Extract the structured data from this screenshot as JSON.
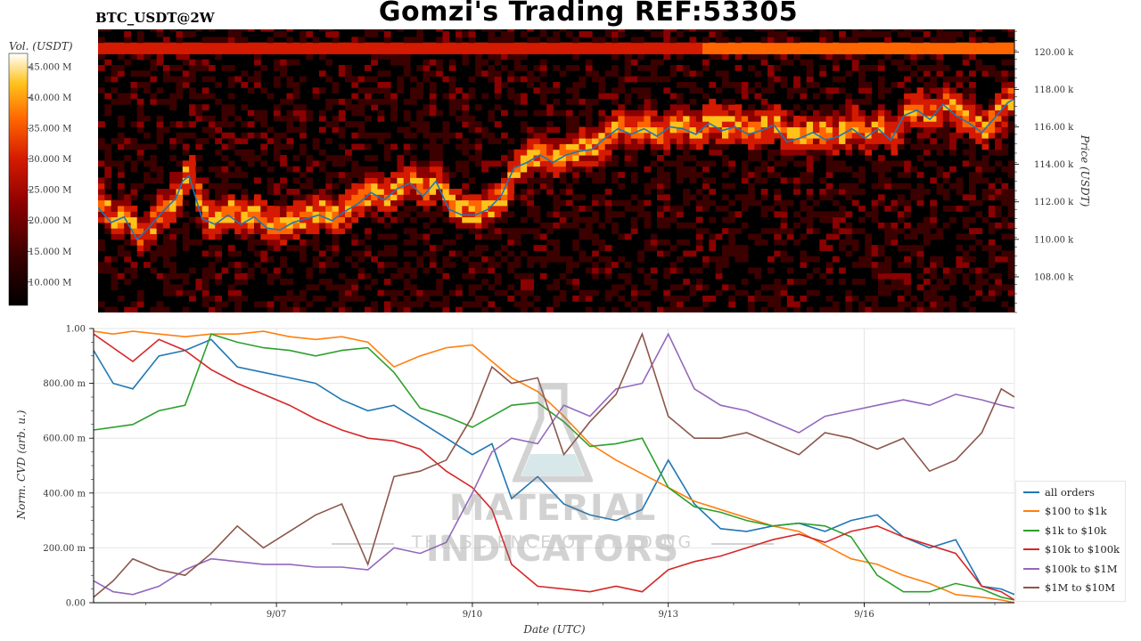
{
  "header": {
    "title": "Gomzi's Trading REF:53305",
    "ticker": "BTC_USDT@2W"
  },
  "watermark": {
    "name": "MATERIAL INDICATORS",
    "slogan": "THE SCIENCE OF TRADING"
  },
  "colors": {
    "heatmap_background": "#000000",
    "price_line": "#1f77b4",
    "colormap": [
      "#000000",
      "#3b0000",
      "#8b0000",
      "#d41a00",
      "#ff6600",
      "#ffc21a",
      "#ffffff"
    ]
  },
  "chart_data": [
    {
      "type": "heatmap",
      "description_of_axes": "order book liquidity heatmap with BTC price line",
      "colorbar": {
        "label": "Vol. (USDT)",
        "ticks": [
          {
            "value": 10,
            "label": "10.000 M"
          },
          {
            "value": 15,
            "label": "15.000 M"
          },
          {
            "value": 20,
            "label": "20.000 M"
          },
          {
            "value": 25,
            "label": "25.000 M"
          },
          {
            "value": 30,
            "label": "30.000 M"
          },
          {
            "value": 35,
            "label": "35.000 M"
          },
          {
            "value": 40,
            "label": "40.000 M"
          },
          {
            "value": 45,
            "label": "45.000 M"
          }
        ],
        "range": [
          6.2,
          47.2
        ]
      },
      "y_axis": {
        "label": "Price (USDT)",
        "side": "right",
        "range": [
          106.1,
          121.2
        ],
        "ticks": [
          {
            "value": 108,
            "label": "108.00 k"
          },
          {
            "value": 110,
            "label": "110.00 k"
          },
          {
            "value": 112,
            "label": "112.00 k"
          },
          {
            "value": 114,
            "label": "114.00 k"
          },
          {
            "value": 116,
            "label": "116.00 k"
          },
          {
            "value": 118,
            "label": "118.00 k"
          },
          {
            "value": 120,
            "label": "120.00 k"
          }
        ]
      },
      "x_range": [
        4.2,
        18.3
      ],
      "price_series": {
        "x": [
          4.2,
          4.4,
          4.6,
          4.8,
          5.0,
          5.2,
          5.4,
          5.5,
          5.6,
          5.8,
          6.0,
          6.2,
          6.4,
          6.6,
          6.8,
          7.0,
          7.2,
          7.4,
          7.6,
          7.8,
          8.0,
          8.2,
          8.4,
          8.6,
          8.8,
          9.0,
          9.2,
          9.4,
          9.6,
          9.8,
          10.0,
          10.2,
          10.4,
          10.6,
          10.8,
          11.0,
          11.2,
          11.4,
          11.6,
          11.8,
          12.0,
          12.2,
          12.4,
          12.6,
          12.8,
          13.0,
          13.2,
          13.4,
          13.6,
          13.8,
          14.0,
          14.2,
          14.4,
          14.6,
          14.8,
          15.0,
          15.2,
          15.4,
          15.6,
          15.8,
          16.0,
          16.2,
          16.4,
          16.6,
          16.8,
          17.0,
          17.2,
          17.4,
          17.6,
          17.8,
          18.0,
          18.2,
          18.3
        ],
        "y": [
          111.7,
          110.9,
          111.2,
          110.0,
          110.7,
          111.5,
          112.2,
          113.1,
          113.4,
          111.1,
          110.8,
          111.3,
          110.8,
          111.2,
          110.6,
          110.5,
          110.9,
          111.1,
          111.3,
          111.0,
          111.5,
          111.9,
          112.5,
          112.1,
          112.7,
          113.0,
          112.3,
          113.1,
          111.6,
          111.3,
          111.3,
          111.6,
          112.3,
          113.8,
          114.1,
          114.5,
          114.1,
          114.5,
          114.7,
          114.8,
          115.4,
          115.9,
          115.6,
          115.9,
          115.5,
          116.0,
          115.9,
          115.6,
          116.2,
          115.8,
          116.0,
          115.6,
          115.8,
          116.1,
          115.2,
          115.4,
          115.7,
          115.3,
          115.5,
          115.9,
          115.4,
          115.9,
          115.3,
          116.6,
          116.9,
          116.4,
          117.2,
          116.6,
          116.2,
          115.7,
          116.5,
          117.3,
          117.5
        ]
      }
    },
    {
      "type": "line",
      "x_axis": {
        "label": "Date (UTC)",
        "range": [
          4.2,
          18.3
        ],
        "ticks": [
          {
            "value": 7,
            "label": "9/07"
          },
          {
            "value": 10,
            "label": "9/10"
          },
          {
            "value": 13,
            "label": "9/13"
          },
          {
            "value": 16,
            "label": "9/16"
          }
        ]
      },
      "y_axis": {
        "label": "Norm. CVD (arb. u.)",
        "range": [
          0,
          1
        ],
        "ticks": [
          {
            "value": 0,
            "label": "0.00"
          },
          {
            "value": 0.2,
            "label": "200.00 m"
          },
          {
            "value": 0.4,
            "label": "400.00 m"
          },
          {
            "value": 0.6,
            "label": "600.00 m"
          },
          {
            "value": 0.8,
            "label": "800.00 m"
          },
          {
            "value": 1.0,
            "label": "1.00"
          }
        ]
      },
      "grid": true,
      "legend_position": "bottom-right",
      "x": [
        4.2,
        4.5,
        4.8,
        5.2,
        5.6,
        6.0,
        6.4,
        6.8,
        7.2,
        7.6,
        8.0,
        8.4,
        8.8,
        9.2,
        9.6,
        10.0,
        10.3,
        10.6,
        11.0,
        11.4,
        11.8,
        12.2,
        12.6,
        13.0,
        13.4,
        13.8,
        14.2,
        14.6,
        15.0,
        15.4,
        15.8,
        16.2,
        16.6,
        17.0,
        17.4,
        17.8,
        18.1,
        18.3
      ],
      "series": [
        {
          "name": "all orders",
          "color": "#1f77b4",
          "values": [
            0.92,
            0.8,
            0.78,
            0.9,
            0.92,
            0.96,
            0.86,
            0.84,
            0.82,
            0.8,
            0.74,
            0.7,
            0.72,
            0.66,
            0.6,
            0.54,
            0.58,
            0.38,
            0.46,
            0.36,
            0.32,
            0.3,
            0.34,
            0.52,
            0.36,
            0.27,
            0.26,
            0.28,
            0.29,
            0.26,
            0.3,
            0.32,
            0.24,
            0.2,
            0.23,
            0.06,
            0.05,
            0.03
          ]
        },
        {
          "name": "$100 to $1k",
          "color": "#ff7f0e",
          "values": [
            0.99,
            0.98,
            0.99,
            0.98,
            0.97,
            0.98,
            0.98,
            0.99,
            0.97,
            0.96,
            0.97,
            0.95,
            0.86,
            0.9,
            0.93,
            0.94,
            0.88,
            0.82,
            0.77,
            0.68,
            0.58,
            0.52,
            0.47,
            0.42,
            0.37,
            0.34,
            0.31,
            0.28,
            0.26,
            0.21,
            0.16,
            0.14,
            0.1,
            0.07,
            0.03,
            0.02,
            0.01,
            0.0
          ]
        },
        {
          "name": "$1k to $10k",
          "color": "#2ca02c",
          "values": [
            0.63,
            0.64,
            0.65,
            0.7,
            0.72,
            0.98,
            0.95,
            0.93,
            0.92,
            0.9,
            0.92,
            0.93,
            0.84,
            0.71,
            0.68,
            0.64,
            0.68,
            0.72,
            0.73,
            0.66,
            0.57,
            0.58,
            0.6,
            0.42,
            0.35,
            0.33,
            0.3,
            0.28,
            0.29,
            0.28,
            0.24,
            0.1,
            0.04,
            0.04,
            0.07,
            0.05,
            0.02,
            0.01
          ]
        },
        {
          "name": "$10k to $100k",
          "color": "#d62728",
          "values": [
            0.98,
            0.93,
            0.88,
            0.96,
            0.92,
            0.85,
            0.8,
            0.76,
            0.72,
            0.67,
            0.63,
            0.6,
            0.59,
            0.56,
            0.48,
            0.42,
            0.34,
            0.14,
            0.06,
            0.05,
            0.04,
            0.06,
            0.04,
            0.12,
            0.15,
            0.17,
            0.2,
            0.23,
            0.25,
            0.22,
            0.26,
            0.28,
            0.24,
            0.21,
            0.18,
            0.06,
            0.04,
            0.01
          ]
        },
        {
          "name": "$100k to $1M",
          "color": "#9467bd",
          "values": [
            0.08,
            0.04,
            0.03,
            0.06,
            0.12,
            0.16,
            0.15,
            0.14,
            0.14,
            0.13,
            0.13,
            0.12,
            0.2,
            0.18,
            0.22,
            0.4,
            0.55,
            0.6,
            0.58,
            0.72,
            0.68,
            0.78,
            0.8,
            0.98,
            0.78,
            0.72,
            0.7,
            0.66,
            0.62,
            0.68,
            0.7,
            0.72,
            0.74,
            0.72,
            0.76,
            0.74,
            0.72,
            0.71
          ]
        },
        {
          "name": "$1M to $10M",
          "color": "#8c564b",
          "values": [
            0.02,
            0.08,
            0.16,
            0.12,
            0.1,
            0.18,
            0.28,
            0.2,
            0.26,
            0.32,
            0.36,
            0.14,
            0.46,
            0.48,
            0.52,
            0.68,
            0.86,
            0.8,
            0.82,
            0.54,
            0.66,
            0.76,
            0.98,
            0.68,
            0.6,
            0.6,
            0.62,
            0.58,
            0.54,
            0.62,
            0.6,
            0.56,
            0.6,
            0.48,
            0.52,
            0.62,
            0.78,
            0.75
          ]
        }
      ]
    }
  ]
}
